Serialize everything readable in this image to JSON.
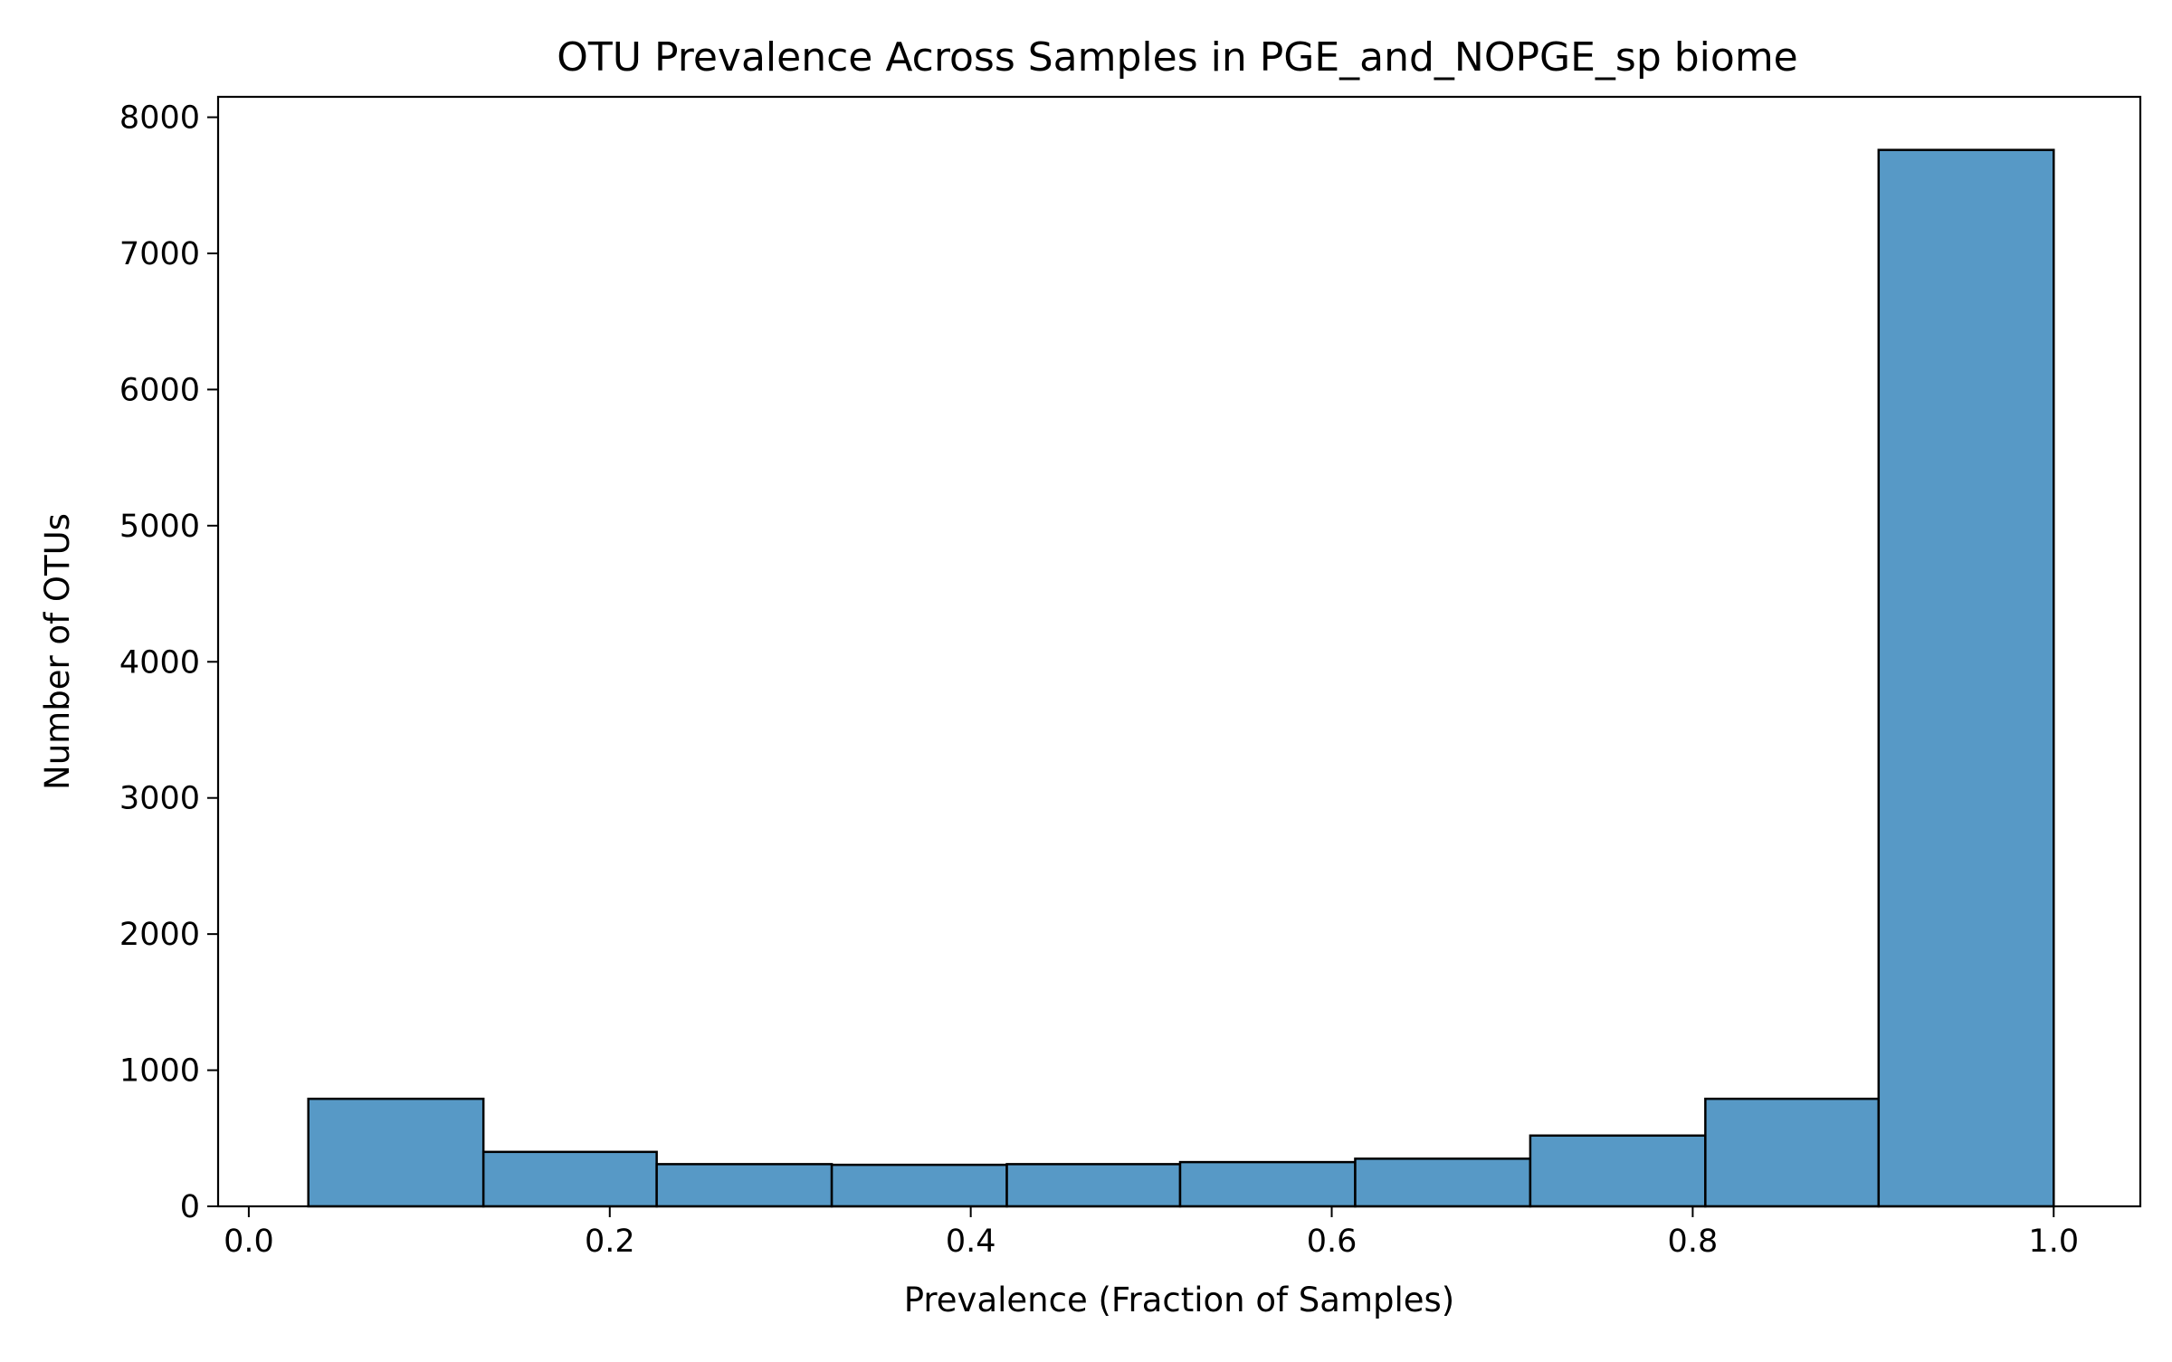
{
  "chart_data": {
    "type": "bar",
    "title": "OTU Prevalence Across Samples in PGE_and_NOPGE_sp biome",
    "xlabel": "Prevalence (Fraction of Samples)",
    "ylabel": "Number of OTUs",
    "xlim": [
      -0.017,
      1.048
    ],
    "ylim": [
      0,
      8150
    ],
    "x_ticks": [
      {
        "value": 0.0,
        "label": "0.0"
      },
      {
        "value": 0.2,
        "label": "0.2"
      },
      {
        "value": 0.4,
        "label": "0.4"
      },
      {
        "value": 0.6,
        "label": "0.6"
      },
      {
        "value": 0.8,
        "label": "0.8"
      },
      {
        "value": 1.0,
        "label": "1.0"
      }
    ],
    "y_ticks": [
      {
        "value": 0,
        "label": "0"
      },
      {
        "value": 1000,
        "label": "1000"
      },
      {
        "value": 2000,
        "label": "2000"
      },
      {
        "value": 3000,
        "label": "3000"
      },
      {
        "value": 4000,
        "label": "4000"
      },
      {
        "value": 5000,
        "label": "5000"
      },
      {
        "value": 6000,
        "label": "6000"
      },
      {
        "value": 7000,
        "label": "7000"
      },
      {
        "value": 8000,
        "label": "8000"
      }
    ],
    "bins": [
      {
        "x0": 0.033,
        "x1": 0.13,
        "value": 790
      },
      {
        "x0": 0.13,
        "x1": 0.226,
        "value": 400
      },
      {
        "x0": 0.226,
        "x1": 0.323,
        "value": 310
      },
      {
        "x0": 0.323,
        "x1": 0.42,
        "value": 305
      },
      {
        "x0": 0.42,
        "x1": 0.516,
        "value": 310
      },
      {
        "x0": 0.516,
        "x1": 0.613,
        "value": 325
      },
      {
        "x0": 0.613,
        "x1": 0.71,
        "value": 350
      },
      {
        "x0": 0.71,
        "x1": 0.807,
        "value": 520
      },
      {
        "x0": 0.807,
        "x1": 0.903,
        "value": 790
      },
      {
        "x0": 0.903,
        "x1": 1.0,
        "value": 7760
      }
    ],
    "bar_color": "#5799c6",
    "edge_color": "#000000",
    "grid": false,
    "legend": "none"
  }
}
